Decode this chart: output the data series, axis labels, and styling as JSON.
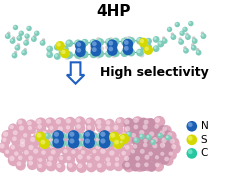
{
  "title": "4HP",
  "arrow_label": "High selectivity",
  "legend_items": [
    {
      "label": "N",
      "color": "#1a5fb4"
    },
    {
      "label": "S",
      "color": "#d4d800"
    },
    {
      "label": "C",
      "color": "#26c6a0"
    }
  ],
  "bg_color": "#ffffff",
  "title_fontsize": 11,
  "arrow_label_fontsize": 9,
  "legend_fontsize": 7.5,
  "molecule_core_color": "#7ecbba",
  "n_color": "#1a5fb4",
  "s_color": "#d4d800",
  "h_color": "#c8c8c8",
  "nanotube_color": "#e8b0c0",
  "arrow_color": "#2060c0"
}
